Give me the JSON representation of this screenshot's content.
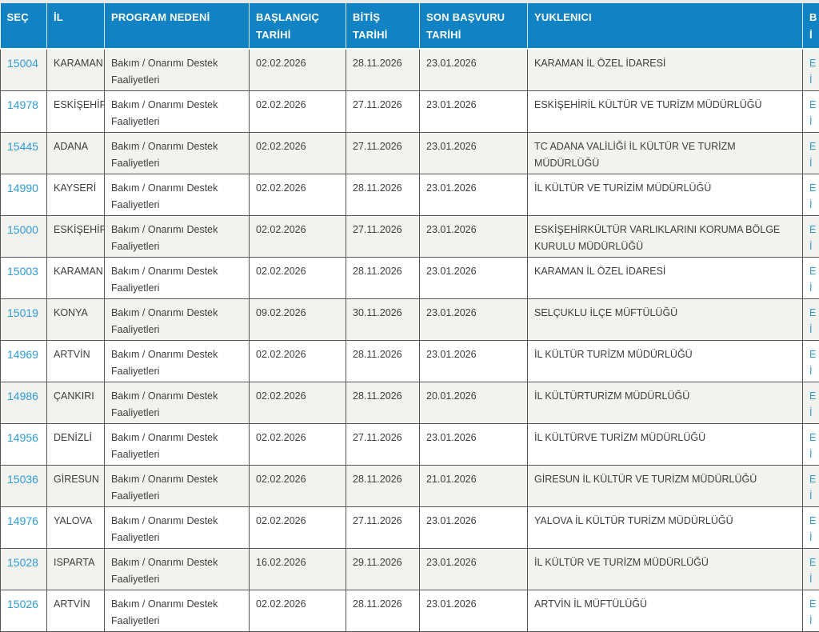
{
  "colors": {
    "header_bg": "#1182c3",
    "header_text": "#ffffff",
    "link": "#2e9bd6",
    "cell_text": "#3d3d3d",
    "border": "#565656",
    "row_alt_bg": "#f2f2ef",
    "page_bg": "#e9e9e6"
  },
  "table": {
    "columns": [
      {
        "key": "sec",
        "label": "SEÇ"
      },
      {
        "key": "il",
        "label": "İL"
      },
      {
        "key": "program",
        "label": "PROGRAM NEDENİ"
      },
      {
        "key": "baslangic",
        "label": "BAŞLANGIÇ TARİHİ"
      },
      {
        "key": "bitis",
        "label": "BİTİŞ TARİHİ"
      },
      {
        "key": "son_basvuru",
        "label": "SON BAŞVURU TARİHİ"
      },
      {
        "key": "yuklenici",
        "label": "YUKLENICI"
      }
    ],
    "last_column": {
      "header_lines": [
        "B",
        "İ"
      ],
      "cell_lines": [
        "E",
        "İ"
      ]
    },
    "rows": [
      {
        "sec": "15004",
        "il": "KARAMAN",
        "program": "Bakım / Onarımı Destek Faaliyetleri",
        "baslangic": "02.02.2026",
        "bitis": "28.11.2026",
        "son_basvuru": "23.01.2026",
        "yuklenici": "KARAMAN İL ÖZEL İDARESİ"
      },
      {
        "sec": "14978",
        "il": "ESKİŞEHİR",
        "program": "Bakım / Onarımı Destek Faaliyetleri",
        "baslangic": "02.02.2026",
        "bitis": "27.11.2026",
        "son_basvuru": "23.01.2026",
        "yuklenici": "ESKİŞEHİRİL KÜLTÜR VE TURİZM MÜDÜRLÜĞÜ"
      },
      {
        "sec": "15445",
        "il": "ADANA",
        "program": "Bakım / Onarımı Destek Faaliyetleri",
        "baslangic": "02.02.2026",
        "bitis": "27.11.2026",
        "son_basvuru": "23.01.2026",
        "yuklenici": "TC ADANA VALİLİĞİ İL KÜLTÜR VE TURİZM MÜDÜRLÜĞÜ"
      },
      {
        "sec": "14990",
        "il": "KAYSERİ",
        "program": "Bakım / Onarımı Destek Faaliyetleri",
        "baslangic": "02.02.2026",
        "bitis": "28.11.2026",
        "son_basvuru": "23.01.2026",
        "yuklenici": "İL KÜLTÜR VE TURİZİM MÜDÜRLÜĞÜ"
      },
      {
        "sec": "15000",
        "il": "ESKİŞEHİR",
        "program": "Bakım / Onarımı Destek Faaliyetleri",
        "baslangic": "02.02.2026",
        "bitis": "27.11.2026",
        "son_basvuru": "23.01.2026",
        "yuklenici": "ESKİŞEHİRKÜLTÜR VARLIKLARINI KORUMA BÖLGE KURULU MÜDÜRLÜĞÜ"
      },
      {
        "sec": "15003",
        "il": "KARAMAN",
        "program": "Bakım / Onarımı Destek Faaliyetleri",
        "baslangic": "02.02.2026",
        "bitis": "28.11.2026",
        "son_basvuru": "23.01.2026",
        "yuklenici": "KARAMAN İL ÖZEL İDARESİ"
      },
      {
        "sec": "15019",
        "il": "KONYA",
        "program": "Bakım / Onarımı Destek Faaliyetleri",
        "baslangic": "09.02.2026",
        "bitis": "30.11.2026",
        "son_basvuru": "23.01.2026",
        "yuklenici": "SELÇUKLU İLÇE MÜFTÜLÜĞÜ"
      },
      {
        "sec": "14969",
        "il": "ARTVİN",
        "program": "Bakım / Onarımı Destek Faaliyetleri",
        "baslangic": "02.02.2026",
        "bitis": "28.11.2026",
        "son_basvuru": "23.01.2026",
        "yuklenici": "İL KÜLTÜR TURİZM MÜDÜRLÜĞÜ"
      },
      {
        "sec": "14986",
        "il": "ÇANKIRI",
        "program": "Bakım / Onarımı Destek Faaliyetleri",
        "baslangic": "02.02.2026",
        "bitis": "28.11.2026",
        "son_basvuru": "20.01.2026",
        "yuklenici": "İL KÜLTÜRTURİZM MÜDÜRLÜĞÜ"
      },
      {
        "sec": "14956",
        "il": "DENİZLİ",
        "program": "Bakım / Onarımı Destek Faaliyetleri",
        "baslangic": "02.02.2026",
        "bitis": "27.11.2026",
        "son_basvuru": "23.01.2026",
        "yuklenici": "İL KÜLTÜRVE TURİZM MÜDÜRLÜĞÜ"
      },
      {
        "sec": "15036",
        "il": "GİRESUN",
        "program": "Bakım / Onarımı Destek Faaliyetleri",
        "baslangic": "02.02.2026",
        "bitis": "28.11.2026",
        "son_basvuru": "21.01.2026",
        "yuklenici": "GİRESUN İL KÜLTÜR VE TURİZM MÜDÜRLÜĞÜ"
      },
      {
        "sec": "14976",
        "il": "YALOVA",
        "program": "Bakım / Onarımı Destek Faaliyetleri",
        "baslangic": "02.02.2026",
        "bitis": "27.11.2026",
        "son_basvuru": "23.01.2026",
        "yuklenici": "YALOVA İL KÜLTÜR TURİZM MÜDÜRLÜĞÜ"
      },
      {
        "sec": "15028",
        "il": "ISPARTA",
        "program": "Bakım / Onarımı Destek Faaliyetleri",
        "baslangic": "16.02.2026",
        "bitis": "29.11.2026",
        "son_basvuru": "23.01.2026",
        "yuklenici": "İL KÜLTÜR VE TURİZM MÜDÜRLÜĞÜ"
      },
      {
        "sec": "15026",
        "il": "ARTVİN",
        "program": "Bakım / Onarımı Destek Faaliyetleri",
        "baslangic": "02.02.2026",
        "bitis": "28.11.2026",
        "son_basvuru": "23.01.2026",
        "yuklenici": "ARTVİN İL MÜFTÜLÜĞÜ"
      }
    ]
  }
}
